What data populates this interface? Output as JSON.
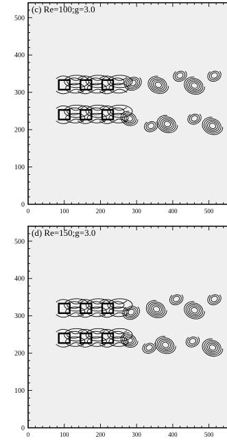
{
  "figure": {
    "background_color": "#efefef",
    "panels": [
      {
        "label": "(c) Re=100;g=3.0",
        "x_ticks": [
          "0",
          "100",
          "200",
          "300",
          "400",
          "500"
        ],
        "y_ticks": [
          "0",
          "100",
          "200",
          "300",
          "400",
          "500"
        ]
      },
      {
        "label": "(d) Re=150;g=3.0",
        "x_ticks": [
          "0",
          "100",
          "200",
          "300",
          "400",
          "500"
        ],
        "y_ticks": [
          "0",
          "100",
          "200",
          "300",
          "400",
          "500"
        ]
      }
    ]
  },
  "chart_data": [
    {
      "type": "contour",
      "title": "(c) Re=100;g=3.0",
      "xlabel": "",
      "ylabel": "",
      "xlim": [
        0,
        550
      ],
      "ylim": [
        0,
        540
      ],
      "x_ticks": [
        0,
        100,
        200,
        300,
        400,
        500
      ],
      "y_ticks": [
        0,
        100,
        200,
        300,
        400,
        500
      ],
      "grid": false,
      "bodies": [
        {
          "x": 100,
          "y": 320
        },
        {
          "x": 160,
          "y": 320
        },
        {
          "x": 220,
          "y": 320
        },
        {
          "x": 100,
          "y": 240
        },
        {
          "x": 160,
          "y": 240
        },
        {
          "x": 220,
          "y": 240
        }
      ],
      "vortices": [
        {
          "x": 290,
          "y": 325,
          "levels": 4
        },
        {
          "x": 360,
          "y": 320,
          "levels": 5
        },
        {
          "x": 420,
          "y": 345,
          "levels": 3
        },
        {
          "x": 460,
          "y": 318,
          "levels": 5
        },
        {
          "x": 515,
          "y": 345,
          "levels": 3
        },
        {
          "x": 280,
          "y": 230,
          "levels": 4
        },
        {
          "x": 340,
          "y": 210,
          "levels": 3
        },
        {
          "x": 385,
          "y": 215,
          "levels": 5
        },
        {
          "x": 460,
          "y": 230,
          "levels": 3
        },
        {
          "x": 510,
          "y": 210,
          "levels": 5
        }
      ]
    },
    {
      "type": "contour",
      "title": "(d) Re=150;g=3.0",
      "xlabel": "",
      "ylabel": "",
      "xlim": [
        0,
        550
      ],
      "ylim": [
        0,
        540
      ],
      "x_ticks": [
        0,
        100,
        200,
        300,
        400,
        500
      ],
      "y_ticks": [
        0,
        100,
        200,
        300,
        400,
        500
      ],
      "grid": false,
      "bodies": [
        {
          "x": 100,
          "y": 320
        },
        {
          "x": 160,
          "y": 320
        },
        {
          "x": 220,
          "y": 320
        },
        {
          "x": 100,
          "y": 240
        },
        {
          "x": 160,
          "y": 240
        },
        {
          "x": 220,
          "y": 240
        }
      ],
      "vortices": [
        {
          "x": 285,
          "y": 310,
          "levels": 4
        },
        {
          "x": 355,
          "y": 318,
          "levels": 5
        },
        {
          "x": 410,
          "y": 345,
          "levels": 3
        },
        {
          "x": 460,
          "y": 315,
          "levels": 5
        },
        {
          "x": 515,
          "y": 345,
          "levels": 3
        },
        {
          "x": 280,
          "y": 235,
          "levels": 4
        },
        {
          "x": 335,
          "y": 215,
          "levels": 3
        },
        {
          "x": 380,
          "y": 222,
          "levels": 5
        },
        {
          "x": 455,
          "y": 232,
          "levels": 3
        },
        {
          "x": 510,
          "y": 215,
          "levels": 5
        }
      ]
    }
  ]
}
